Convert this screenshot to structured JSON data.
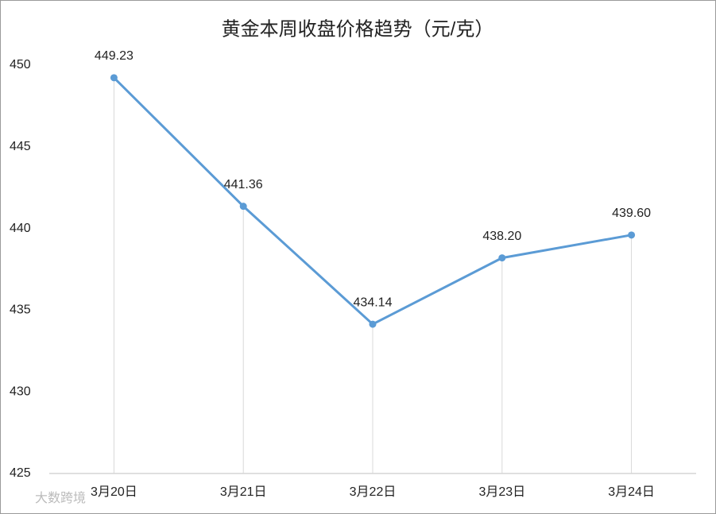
{
  "chart_data": {
    "type": "line",
    "title": "黄金本周收盘价格趋势（元/克）",
    "categories": [
      "3月20日",
      "3月21日",
      "3月22日",
      "3月23日",
      "3月24日"
    ],
    "series": [
      {
        "name": "收盘价格",
        "color": "#5b9bd5",
        "values": [
          449.23,
          441.36,
          434.14,
          438.2,
          439.6
        ],
        "value_labels": [
          "449.23",
          "441.36",
          "434.14",
          "438.20",
          "439.60"
        ]
      }
    ],
    "ylim": [
      425,
      450
    ],
    "yticks": [
      425,
      430,
      435,
      440,
      445,
      450
    ],
    "watermark": "大数跨境"
  }
}
